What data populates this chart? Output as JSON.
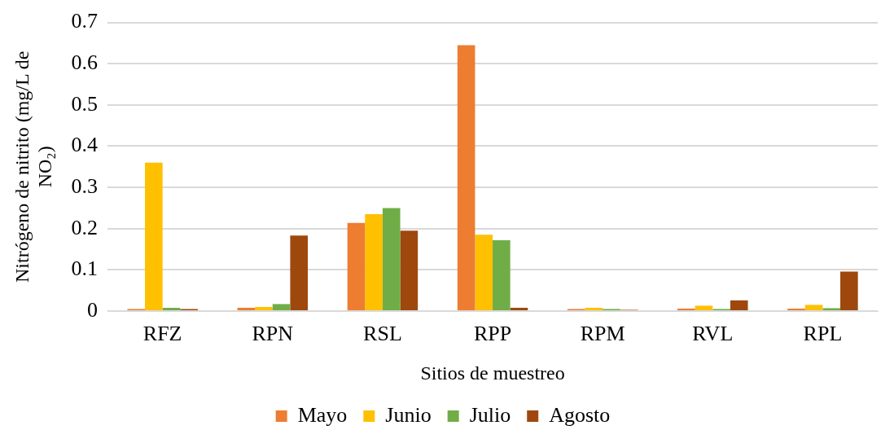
{
  "chart_data": {
    "type": "bar",
    "xlabel": "Sitios de muestreo",
    "ylabel": "Nitrógeno de nitrito (mg/L de NO₂)",
    "categories": [
      "RFZ",
      "RPN",
      "RSL",
      "RPP",
      "RPM",
      "RVL",
      "RPL"
    ],
    "series": [
      {
        "name": "Mayo",
        "color": "#ed7d31",
        "values": [
          0.005,
          0.008,
          0.214,
          0.645,
          0.005,
          0.006,
          0.006
        ]
      },
      {
        "name": "Junio",
        "color": "#ffc000",
        "values": [
          0.36,
          0.01,
          0.235,
          0.185,
          0.008,
          0.013,
          0.015
        ]
      },
      {
        "name": "Julio",
        "color": "#70ad47",
        "values": [
          0.008,
          0.017,
          0.25,
          0.172,
          0.005,
          0.005,
          0.007
        ]
      },
      {
        "name": "Agosto",
        "color": "#9e480e",
        "values": [
          0.005,
          0.183,
          0.195,
          0.008,
          0.003,
          0.026,
          0.096
        ]
      }
    ],
    "ylim": [
      0,
      0.7
    ],
    "yticks": [
      0,
      0.1,
      0.2,
      0.3,
      0.4,
      0.5,
      0.6,
      0.7
    ],
    "grid": "y",
    "legend": "bottom"
  }
}
